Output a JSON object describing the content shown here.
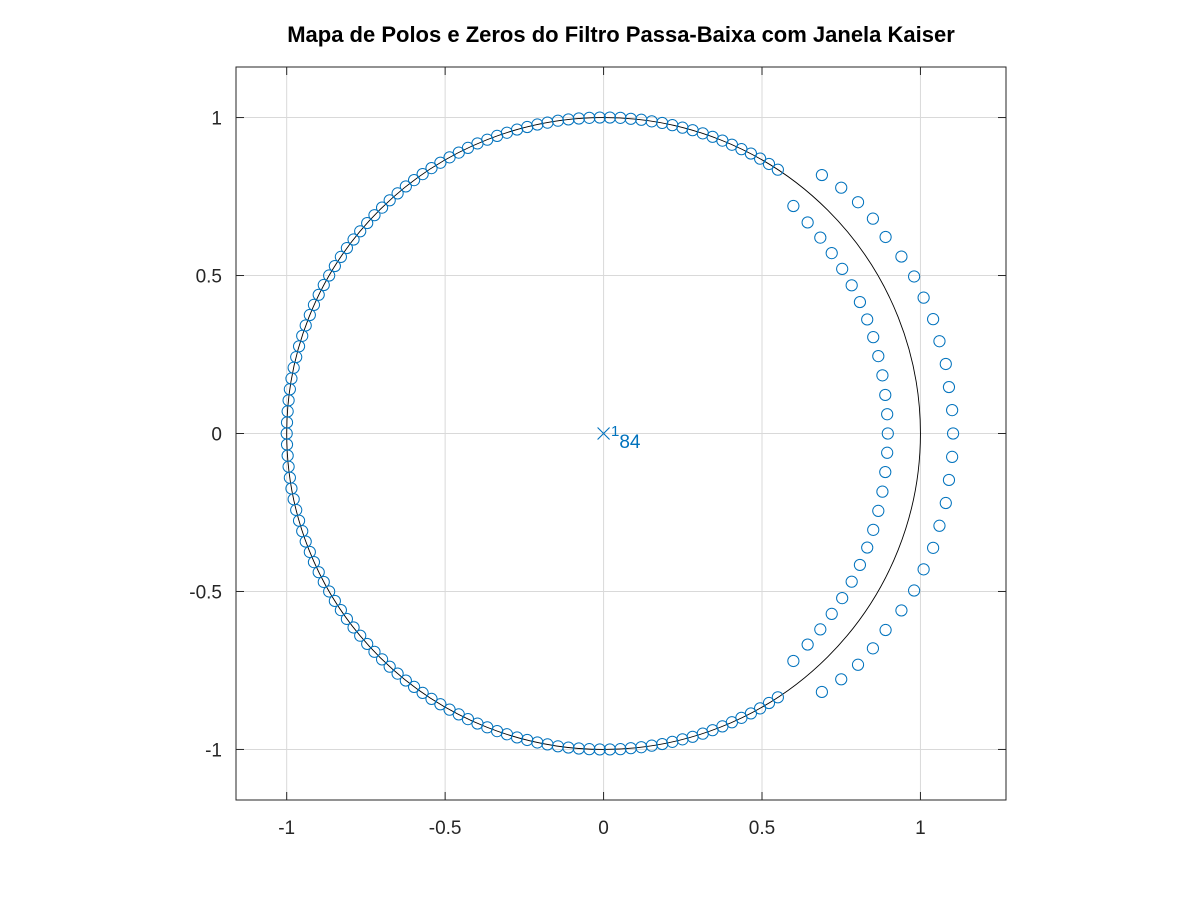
{
  "chart_data": {
    "type": "scatter",
    "title": "Mapa de Polos e Zeros do Filtro Passa-Baixa com Janela Kaiser",
    "xlabel": "",
    "ylabel": "",
    "xlim": [
      -1.16,
      1.27
    ],
    "ylim": [
      -1.16,
      1.16
    ],
    "grid": true,
    "x_ticks": [
      "-1",
      "-0.5",
      "0",
      "0.5",
      "1"
    ],
    "y_ticks": [
      "1",
      "0.5",
      "0",
      "-0.5",
      "-1"
    ],
    "colors": {
      "markers": "#0072bd",
      "unit_circle": "#000000",
      "grid": "#d9d9d9",
      "axes": "#262626"
    },
    "unit_circle": true,
    "poles": [
      {
        "x": 0,
        "y": 0
      }
    ],
    "pole_multiplicity_label": "184",
    "zeros": [
      {
        "x": 0.02,
        "y": 1.0
      },
      {
        "x": 0.053,
        "y": 0.999
      },
      {
        "x": 0.086,
        "y": 0.996
      },
      {
        "x": 0.119,
        "y": 0.993
      },
      {
        "x": 0.152,
        "y": 0.988
      },
      {
        "x": 0.185,
        "y": 0.983
      },
      {
        "x": 0.217,
        "y": 0.976
      },
      {
        "x": 0.249,
        "y": 0.968
      },
      {
        "x": 0.281,
        "y": 0.96
      },
      {
        "x": 0.313,
        "y": 0.95
      },
      {
        "x": 0.344,
        "y": 0.939
      },
      {
        "x": 0.375,
        "y": 0.927
      },
      {
        "x": 0.405,
        "y": 0.914
      },
      {
        "x": 0.435,
        "y": 0.9
      },
      {
        "x": 0.465,
        "y": 0.886
      },
      {
        "x": 0.494,
        "y": 0.87
      },
      {
        "x": 0.522,
        "y": 0.853
      },
      {
        "x": 0.55,
        "y": 0.835
      },
      {
        "x": -0.012,
        "y": 1.0
      },
      {
        "x": -0.045,
        "y": 0.999
      },
      {
        "x": -0.078,
        "y": 0.997
      },
      {
        "x": -0.111,
        "y": 0.994
      },
      {
        "x": -0.144,
        "y": 0.99
      },
      {
        "x": -0.177,
        "y": 0.984
      },
      {
        "x": -0.209,
        "y": 0.978
      },
      {
        "x": -0.241,
        "y": 0.97
      },
      {
        "x": -0.273,
        "y": 0.962
      },
      {
        "x": -0.305,
        "y": 0.952
      },
      {
        "x": -0.336,
        "y": 0.942
      },
      {
        "x": -0.367,
        "y": 0.93
      },
      {
        "x": -0.398,
        "y": 0.918
      },
      {
        "x": -0.428,
        "y": 0.904
      },
      {
        "x": -0.457,
        "y": 0.889
      },
      {
        "x": -0.486,
        "y": 0.874
      },
      {
        "x": -0.515,
        "y": 0.857
      },
      {
        "x": -0.543,
        "y": 0.84
      },
      {
        "x": -0.571,
        "y": 0.821
      },
      {
        "x": -0.598,
        "y": 0.802
      },
      {
        "x": -0.624,
        "y": 0.782
      },
      {
        "x": -0.65,
        "y": 0.76
      },
      {
        "x": -0.675,
        "y": 0.738
      },
      {
        "x": -0.699,
        "y": 0.715
      },
      {
        "x": -0.723,
        "y": 0.691
      },
      {
        "x": -0.746,
        "y": 0.666
      },
      {
        "x": -0.768,
        "y": 0.64
      },
      {
        "x": -0.789,
        "y": 0.614
      },
      {
        "x": -0.81,
        "y": 0.587
      },
      {
        "x": -0.829,
        "y": 0.559
      },
      {
        "x": -0.848,
        "y": 0.53
      },
      {
        "x": -0.866,
        "y": 0.5
      },
      {
        "x": -0.883,
        "y": 0.47
      },
      {
        "x": -0.899,
        "y": 0.439
      },
      {
        "x": -0.914,
        "y": 0.407
      },
      {
        "x": -0.927,
        "y": 0.375
      },
      {
        "x": -0.94,
        "y": 0.342
      },
      {
        "x": -0.951,
        "y": 0.309
      },
      {
        "x": -0.961,
        "y": 0.276
      },
      {
        "x": -0.97,
        "y": 0.242
      },
      {
        "x": -0.978,
        "y": 0.208
      },
      {
        "x": -0.985,
        "y": 0.174
      },
      {
        "x": -0.99,
        "y": 0.14
      },
      {
        "x": -0.994,
        "y": 0.105
      },
      {
        "x": -0.997,
        "y": 0.07
      },
      {
        "x": -0.999,
        "y": 0.035
      },
      {
        "x": -1.0,
        "y": 0.0
      },
      {
        "x": -0.999,
        "y": -0.035
      },
      {
        "x": -0.997,
        "y": -0.07
      },
      {
        "x": -0.994,
        "y": -0.105
      },
      {
        "x": -0.99,
        "y": -0.14
      },
      {
        "x": -0.985,
        "y": -0.174
      },
      {
        "x": -0.978,
        "y": -0.208
      },
      {
        "x": -0.97,
        "y": -0.242
      },
      {
        "x": -0.961,
        "y": -0.276
      },
      {
        "x": -0.951,
        "y": -0.309
      },
      {
        "x": -0.94,
        "y": -0.342
      },
      {
        "x": -0.927,
        "y": -0.375
      },
      {
        "x": -0.914,
        "y": -0.407
      },
      {
        "x": -0.899,
        "y": -0.439
      },
      {
        "x": -0.883,
        "y": -0.47
      },
      {
        "x": -0.866,
        "y": -0.5
      },
      {
        "x": -0.848,
        "y": -0.53
      },
      {
        "x": -0.829,
        "y": -0.559
      },
      {
        "x": -0.81,
        "y": -0.587
      },
      {
        "x": -0.789,
        "y": -0.614
      },
      {
        "x": -0.768,
        "y": -0.64
      },
      {
        "x": -0.746,
        "y": -0.666
      },
      {
        "x": -0.723,
        "y": -0.691
      },
      {
        "x": -0.699,
        "y": -0.715
      },
      {
        "x": -0.675,
        "y": -0.738
      },
      {
        "x": -0.65,
        "y": -0.76
      },
      {
        "x": -0.624,
        "y": -0.782
      },
      {
        "x": -0.598,
        "y": -0.802
      },
      {
        "x": -0.571,
        "y": -0.821
      },
      {
        "x": -0.543,
        "y": -0.84
      },
      {
        "x": -0.515,
        "y": -0.857
      },
      {
        "x": -0.486,
        "y": -0.874
      },
      {
        "x": -0.457,
        "y": -0.889
      },
      {
        "x": -0.428,
        "y": -0.904
      },
      {
        "x": -0.398,
        "y": -0.918
      },
      {
        "x": -0.367,
        "y": -0.93
      },
      {
        "x": -0.336,
        "y": -0.942
      },
      {
        "x": -0.305,
        "y": -0.952
      },
      {
        "x": -0.273,
        "y": -0.962
      },
      {
        "x": -0.241,
        "y": -0.97
      },
      {
        "x": -0.209,
        "y": -0.978
      },
      {
        "x": -0.177,
        "y": -0.984
      },
      {
        "x": -0.144,
        "y": -0.99
      },
      {
        "x": -0.111,
        "y": -0.994
      },
      {
        "x": -0.078,
        "y": -0.997
      },
      {
        "x": -0.045,
        "y": -0.999
      },
      {
        "x": -0.012,
        "y": -1.0
      },
      {
        "x": 0.02,
        "y": -1.0
      },
      {
        "x": 0.053,
        "y": -0.999
      },
      {
        "x": 0.086,
        "y": -0.996
      },
      {
        "x": 0.119,
        "y": -0.993
      },
      {
        "x": 0.152,
        "y": -0.988
      },
      {
        "x": 0.185,
        "y": -0.983
      },
      {
        "x": 0.217,
        "y": -0.976
      },
      {
        "x": 0.249,
        "y": -0.968
      },
      {
        "x": 0.281,
        "y": -0.96
      },
      {
        "x": 0.313,
        "y": -0.95
      },
      {
        "x": 0.344,
        "y": -0.939
      },
      {
        "x": 0.375,
        "y": -0.927
      },
      {
        "x": 0.405,
        "y": -0.914
      },
      {
        "x": 0.435,
        "y": -0.9
      },
      {
        "x": 0.465,
        "y": -0.886
      },
      {
        "x": 0.494,
        "y": -0.87
      },
      {
        "x": 0.522,
        "y": -0.853
      },
      {
        "x": 0.55,
        "y": -0.835
      },
      {
        "x": 0.599,
        "y": 0.72
      },
      {
        "x": 0.644,
        "y": 0.668
      },
      {
        "x": 0.684,
        "y": 0.62
      },
      {
        "x": 0.72,
        "y": 0.571
      },
      {
        "x": 0.753,
        "y": 0.521
      },
      {
        "x": 0.783,
        "y": 0.469
      },
      {
        "x": 0.809,
        "y": 0.416
      },
      {
        "x": 0.832,
        "y": 0.361
      },
      {
        "x": 0.851,
        "y": 0.305
      },
      {
        "x": 0.867,
        "y": 0.245
      },
      {
        "x": 0.88,
        "y": 0.184
      },
      {
        "x": 0.889,
        "y": 0.122
      },
      {
        "x": 0.895,
        "y": 0.061
      },
      {
        "x": 0.897,
        "y": 0.0
      },
      {
        "x": 0.895,
        "y": -0.061
      },
      {
        "x": 0.889,
        "y": -0.122
      },
      {
        "x": 0.88,
        "y": -0.184
      },
      {
        "x": 0.867,
        "y": -0.245
      },
      {
        "x": 0.851,
        "y": -0.305
      },
      {
        "x": 0.832,
        "y": -0.361
      },
      {
        "x": 0.809,
        "y": -0.416
      },
      {
        "x": 0.783,
        "y": -0.469
      },
      {
        "x": 0.753,
        "y": -0.521
      },
      {
        "x": 0.72,
        "y": -0.571
      },
      {
        "x": 0.684,
        "y": -0.62
      },
      {
        "x": 0.644,
        "y": -0.668
      },
      {
        "x": 0.599,
        "y": -0.72
      },
      {
        "x": 0.689,
        "y": 0.818
      },
      {
        "x": 0.75,
        "y": 0.778
      },
      {
        "x": 0.803,
        "y": 0.732
      },
      {
        "x": 0.85,
        "y": 0.68
      },
      {
        "x": 0.89,
        "y": 0.622
      },
      {
        "x": 0.94,
        "y": 0.56
      },
      {
        "x": 0.98,
        "y": 0.497
      },
      {
        "x": 1.01,
        "y": 0.43
      },
      {
        "x": 1.04,
        "y": 0.362
      },
      {
        "x": 1.06,
        "y": 0.292
      },
      {
        "x": 1.08,
        "y": 0.22
      },
      {
        "x": 1.09,
        "y": 0.147
      },
      {
        "x": 1.1,
        "y": 0.074
      },
      {
        "x": 1.103,
        "y": 0.0
      },
      {
        "x": 1.1,
        "y": -0.074
      },
      {
        "x": 1.09,
        "y": -0.147
      },
      {
        "x": 1.08,
        "y": -0.22
      },
      {
        "x": 1.06,
        "y": -0.292
      },
      {
        "x": 1.04,
        "y": -0.362
      },
      {
        "x": 1.01,
        "y": -0.43
      },
      {
        "x": 0.98,
        "y": -0.497
      },
      {
        "x": 0.94,
        "y": -0.56
      },
      {
        "x": 0.89,
        "y": -0.622
      },
      {
        "x": 0.85,
        "y": -0.68
      },
      {
        "x": 0.803,
        "y": -0.732
      },
      {
        "x": 0.75,
        "y": -0.778
      },
      {
        "x": 0.689,
        "y": -0.818
      }
    ]
  }
}
